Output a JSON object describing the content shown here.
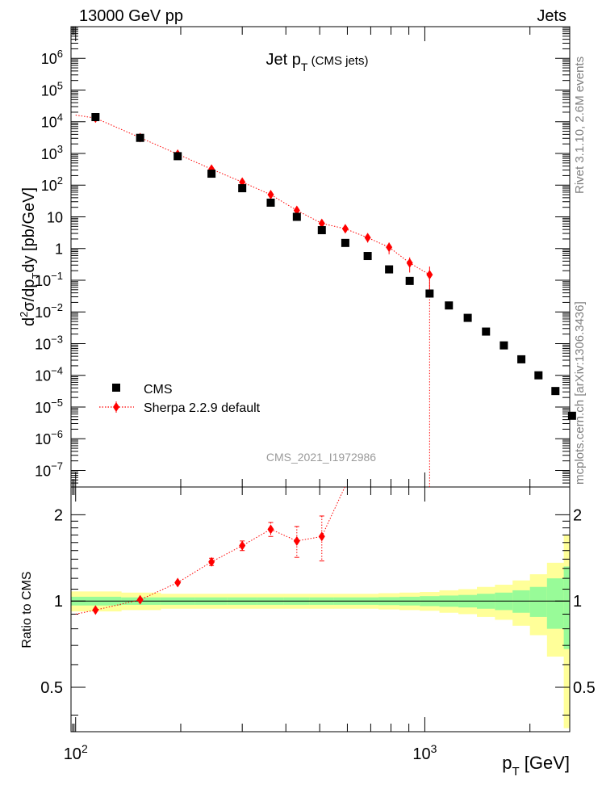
{
  "header": {
    "left": "13000 GeV pp",
    "right": "Jets",
    "side_top": "Rivet 3.1.10, 2.6M events",
    "side_bottom": "mcplots.cern.ch [arXiv:1306.3436]",
    "analysis_id": "CMS_2021_I1972986"
  },
  "chart_data": [
    {
      "panel": "main",
      "type": "scatter",
      "title": "Jet p_T (CMS jets)",
      "ylabel": "d²σ/dp_T dy [pb/GeV]",
      "yscale": "log",
      "xscale": "log",
      "xlim": [
        97,
        2600
      ],
      "ylim": [
        3e-08,
        10000000.0
      ],
      "legend_placement": "bottom-left",
      "ytick_labels": [
        "10^-7",
        "10^-6",
        "10^-5",
        "10^-4",
        "10^-3",
        "10^-2",
        "10^-1",
        "1",
        "10",
        "10^2",
        "10^3",
        "10^4",
        "10^5",
        "10^6"
      ],
      "series": [
        {
          "name": "CMS",
          "color": "#000000",
          "marker": "square",
          "x": [
            114,
            153,
            196,
            245,
            300,
            362,
            430,
            507,
            592,
            686,
            790,
            905,
            1032,
            1172,
            1327,
            1497,
            1684,
            1890,
            2116,
            2366,
            2640
          ],
          "y": [
            14000,
            3100,
            820,
            230,
            80,
            28,
            10,
            3.8,
            1.5,
            0.58,
            0.22,
            0.095,
            0.038,
            0.016,
            0.0065,
            0.0024,
            0.00088,
            0.00032,
            0.0001,
            3.2e-05,
            5.3e-06
          ]
        },
        {
          "name": "Sherpa 2.2.9 default",
          "color": "#ff0000",
          "marker": "diamond",
          "line": "dotted",
          "x": [
            114,
            153,
            196,
            245,
            300,
            362,
            430,
            507,
            592,
            686,
            790,
            905,
            1032
          ],
          "y": [
            13000,
            3150,
            950,
            320,
            125,
            50,
            16,
            6.2,
            4.2,
            2.2,
            1.1,
            0.35,
            0.15
          ],
          "yerr_rel": [
            0.01,
            0.01,
            0.02,
            0.03,
            0.04,
            0.05,
            0.1,
            0.2,
            0.25,
            0.3,
            0.4,
            0.5,
            0.8
          ]
        }
      ]
    },
    {
      "panel": "ratio",
      "type": "line",
      "ylabel": "Ratio to CMS",
      "xlabel": "p_T [GeV]",
      "xscale": "log",
      "yscale": "log",
      "xlim": [
        97,
        2600
      ],
      "ylim": [
        0.35,
        2.5
      ],
      "x_ticks": [
        {
          "label": "10^2",
          "value": 100
        },
        {
          "label": "10^3",
          "value": 1000
        }
      ],
      "y_ticks": [
        {
          "label": "0.5",
          "value": 0.5
        },
        {
          "label": "1",
          "value": 1
        },
        {
          "label": "2",
          "value": 2
        }
      ],
      "band_edges": [
        97,
        135,
        175,
        220,
        272,
        330,
        395,
        468,
        548,
        638,
        737,
        846,
        967,
        1101,
        1248,
        1410,
        1588,
        1784,
        2000,
        2238,
        2500,
        2600
      ],
      "band_inner_half_width": [
        0.035,
        0.03,
        0.03,
        0.03,
        0.03,
        0.03,
        0.03,
        0.03,
        0.03,
        0.03,
        0.032,
        0.035,
        0.04,
        0.045,
        0.05,
        0.06,
        0.07,
        0.09,
        0.12,
        0.2,
        0.32
      ],
      "band_outer_half_width": [
        0.08,
        0.07,
        0.06,
        0.06,
        0.06,
        0.06,
        0.06,
        0.06,
        0.06,
        0.06,
        0.065,
        0.07,
        0.075,
        0.09,
        0.1,
        0.12,
        0.14,
        0.18,
        0.24,
        0.36,
        0.7
      ],
      "band_colors": {
        "inner": "#98fb98",
        "outer": "#ffff99"
      },
      "series": [
        {
          "name": "Sherpa 2.2.9 default",
          "color": "#ff0000",
          "x": [
            114,
            153,
            196,
            245,
            300,
            362,
            430,
            507
          ],
          "y": [
            0.93,
            1.01,
            1.16,
            1.37,
            1.56,
            1.78,
            1.62,
            1.68
          ],
          "yerr": [
            0.01,
            0.015,
            0.02,
            0.04,
            0.06,
            0.1,
            0.2,
            0.3
          ]
        }
      ]
    }
  ]
}
